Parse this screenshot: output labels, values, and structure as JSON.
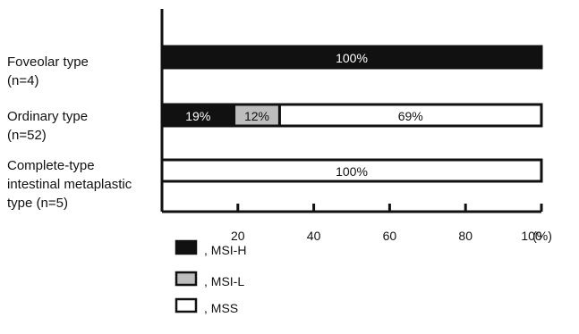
{
  "chart_data": {
    "type": "bar",
    "orientation": "horizontal",
    "stacked": true,
    "xlim": [
      0,
      100
    ],
    "x_ticks": [
      20,
      40,
      60,
      80,
      100
    ],
    "x_unit": "(%)",
    "grid": false,
    "legend_position": "bottom-left",
    "categories": [
      {
        "lines": [
          "Foveolar type",
          "(n=4)"
        ]
      },
      {
        "lines": [
          "Ordinary type",
          "(n=52)"
        ]
      },
      {
        "lines": [
          "Complete-type",
          "intestinal metaplastic",
          "type (n=5)"
        ]
      }
    ],
    "series": [
      {
        "name": ", MSI-H",
        "color": "#111111",
        "label_color": "#ffffff",
        "values": [
          100,
          19,
          0
        ],
        "labels": [
          "100%",
          "19%",
          ""
        ]
      },
      {
        "name": ", MSI-L",
        "color": "#bdbdbd",
        "label_color": "#111111",
        "values": [
          0,
          12,
          0
        ],
        "labels": [
          "",
          "12%",
          ""
        ]
      },
      {
        "name": ", MSS",
        "color": "#ffffff",
        "label_color": "#111111",
        "values": [
          0,
          69,
          100
        ],
        "labels": [
          "",
          "69%",
          "100%"
        ]
      }
    ]
  }
}
